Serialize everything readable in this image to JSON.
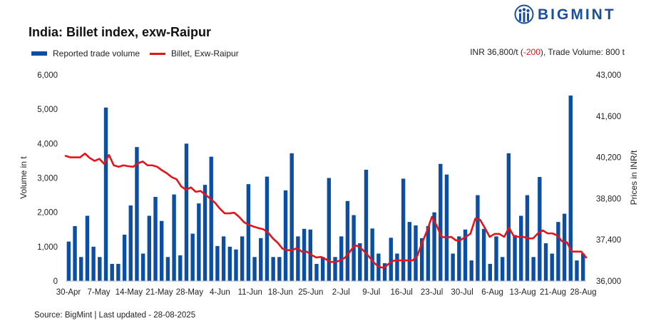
{
  "title": "India: Billet index, exw-Raipur",
  "brand": "BIGMINT",
  "legend": {
    "bar_label": "Reported trade volume",
    "line_label": "Billet, Exw-Raipur"
  },
  "summary": {
    "price": "INR 36,800/t (",
    "change": "-200",
    "rest": "), Trade Volume: 800 t"
  },
  "source": "Source: BigMint | Last updated - 28-08-2025",
  "colors": {
    "bar": "#0b4ea2",
    "line": "#e3141b",
    "brand": "#1b4f9c"
  },
  "chart_data": {
    "type": "bar+line",
    "title": "India: Billet index, exw-Raipur",
    "ylabel": "Volume in t",
    "y2label": "Prices in INR/t",
    "ylim": [
      0,
      6000
    ],
    "y2lim": [
      36000,
      43000
    ],
    "yticks": [
      "0",
      "1,000",
      "2,000",
      "3,000",
      "4,000",
      "5,000",
      "6,000"
    ],
    "y2ticks": [
      "36,000",
      "37,400",
      "38,800",
      "40,200",
      "41,600",
      "43,000"
    ],
    "xtick_labels": [
      "30-Apr",
      "7-May",
      "14-May",
      "21-May",
      "28-May",
      "4-Jun",
      "11-Jun",
      "18-Jun",
      "25-Jun",
      "2-Jul",
      "9-Jul",
      "16-Jul",
      "23-Jul",
      "30-Jul",
      "6-Aug",
      "13-Aug",
      "21-Aug",
      "28-Aug"
    ],
    "series": [
      {
        "name": "Reported trade volume",
        "type": "bar",
        "axis": "left",
        "values": [
          1150,
          1600,
          700,
          1900,
          1000,
          700,
          5050,
          500,
          500,
          1350,
          2200,
          3900,
          800,
          1900,
          2450,
          1750,
          700,
          2520,
          750,
          4000,
          1380,
          2260,
          2800,
          3620,
          1020,
          1300,
          1000,
          920,
          1300,
          2820,
          700,
          1250,
          3040,
          700,
          700,
          2640,
          3720,
          1300,
          1520,
          1500,
          500,
          700,
          3000,
          700,
          1300,
          2330,
          1920,
          1100,
          3240,
          1530,
          800,
          520,
          1260,
          800,
          2980,
          1720,
          1620,
          1250,
          1600,
          2000,
          3410,
          3100,
          800,
          1300,
          1500,
          600,
          2500,
          1520,
          500,
          1300,
          700,
          3720,
          1340,
          1900,
          2500,
          700,
          3030,
          1100,
          800,
          1720,
          1960,
          5400,
          600,
          800
        ]
      },
      {
        "name": "Billet, Exw-Raipur",
        "type": "line",
        "axis": "right",
        "values": [
          40250,
          40200,
          40200,
          40200,
          40330,
          40180,
          40080,
          40150,
          39980,
          40280,
          39930,
          39880,
          39930,
          39900,
          39880,
          40000,
          40060,
          39930,
          39930,
          39880,
          39760,
          39660,
          39530,
          39460,
          39210,
          39100,
          39180,
          39030,
          39060,
          38930,
          38800,
          38660,
          38460,
          38300,
          38300,
          38320,
          38180,
          38000,
          37910,
          37850,
          37800,
          37760,
          37650,
          37450,
          37300,
          37100,
          37050,
          37050,
          37120,
          37000,
          37000,
          36890,
          36800,
          36820,
          36740,
          36650,
          36650,
          36700,
          36800,
          37000,
          37220,
          37160,
          37000,
          36820,
          36620,
          36480,
          36450,
          36580,
          36690,
          36700,
          36700,
          36700,
          36700,
          36870,
          37310,
          37710,
          38180,
          37880,
          37500,
          37480,
          37500,
          37380,
          37400,
          37500,
          37610,
          38120,
          38080,
          37800,
          37500,
          37600,
          37600,
          37500,
          37810,
          37520,
          37500,
          37500,
          37450,
          37450,
          37620,
          37720,
          37620,
          37620,
          37550,
          37350,
          37320,
          37000,
          37000,
          37000,
          36800
        ]
      }
    ]
  }
}
